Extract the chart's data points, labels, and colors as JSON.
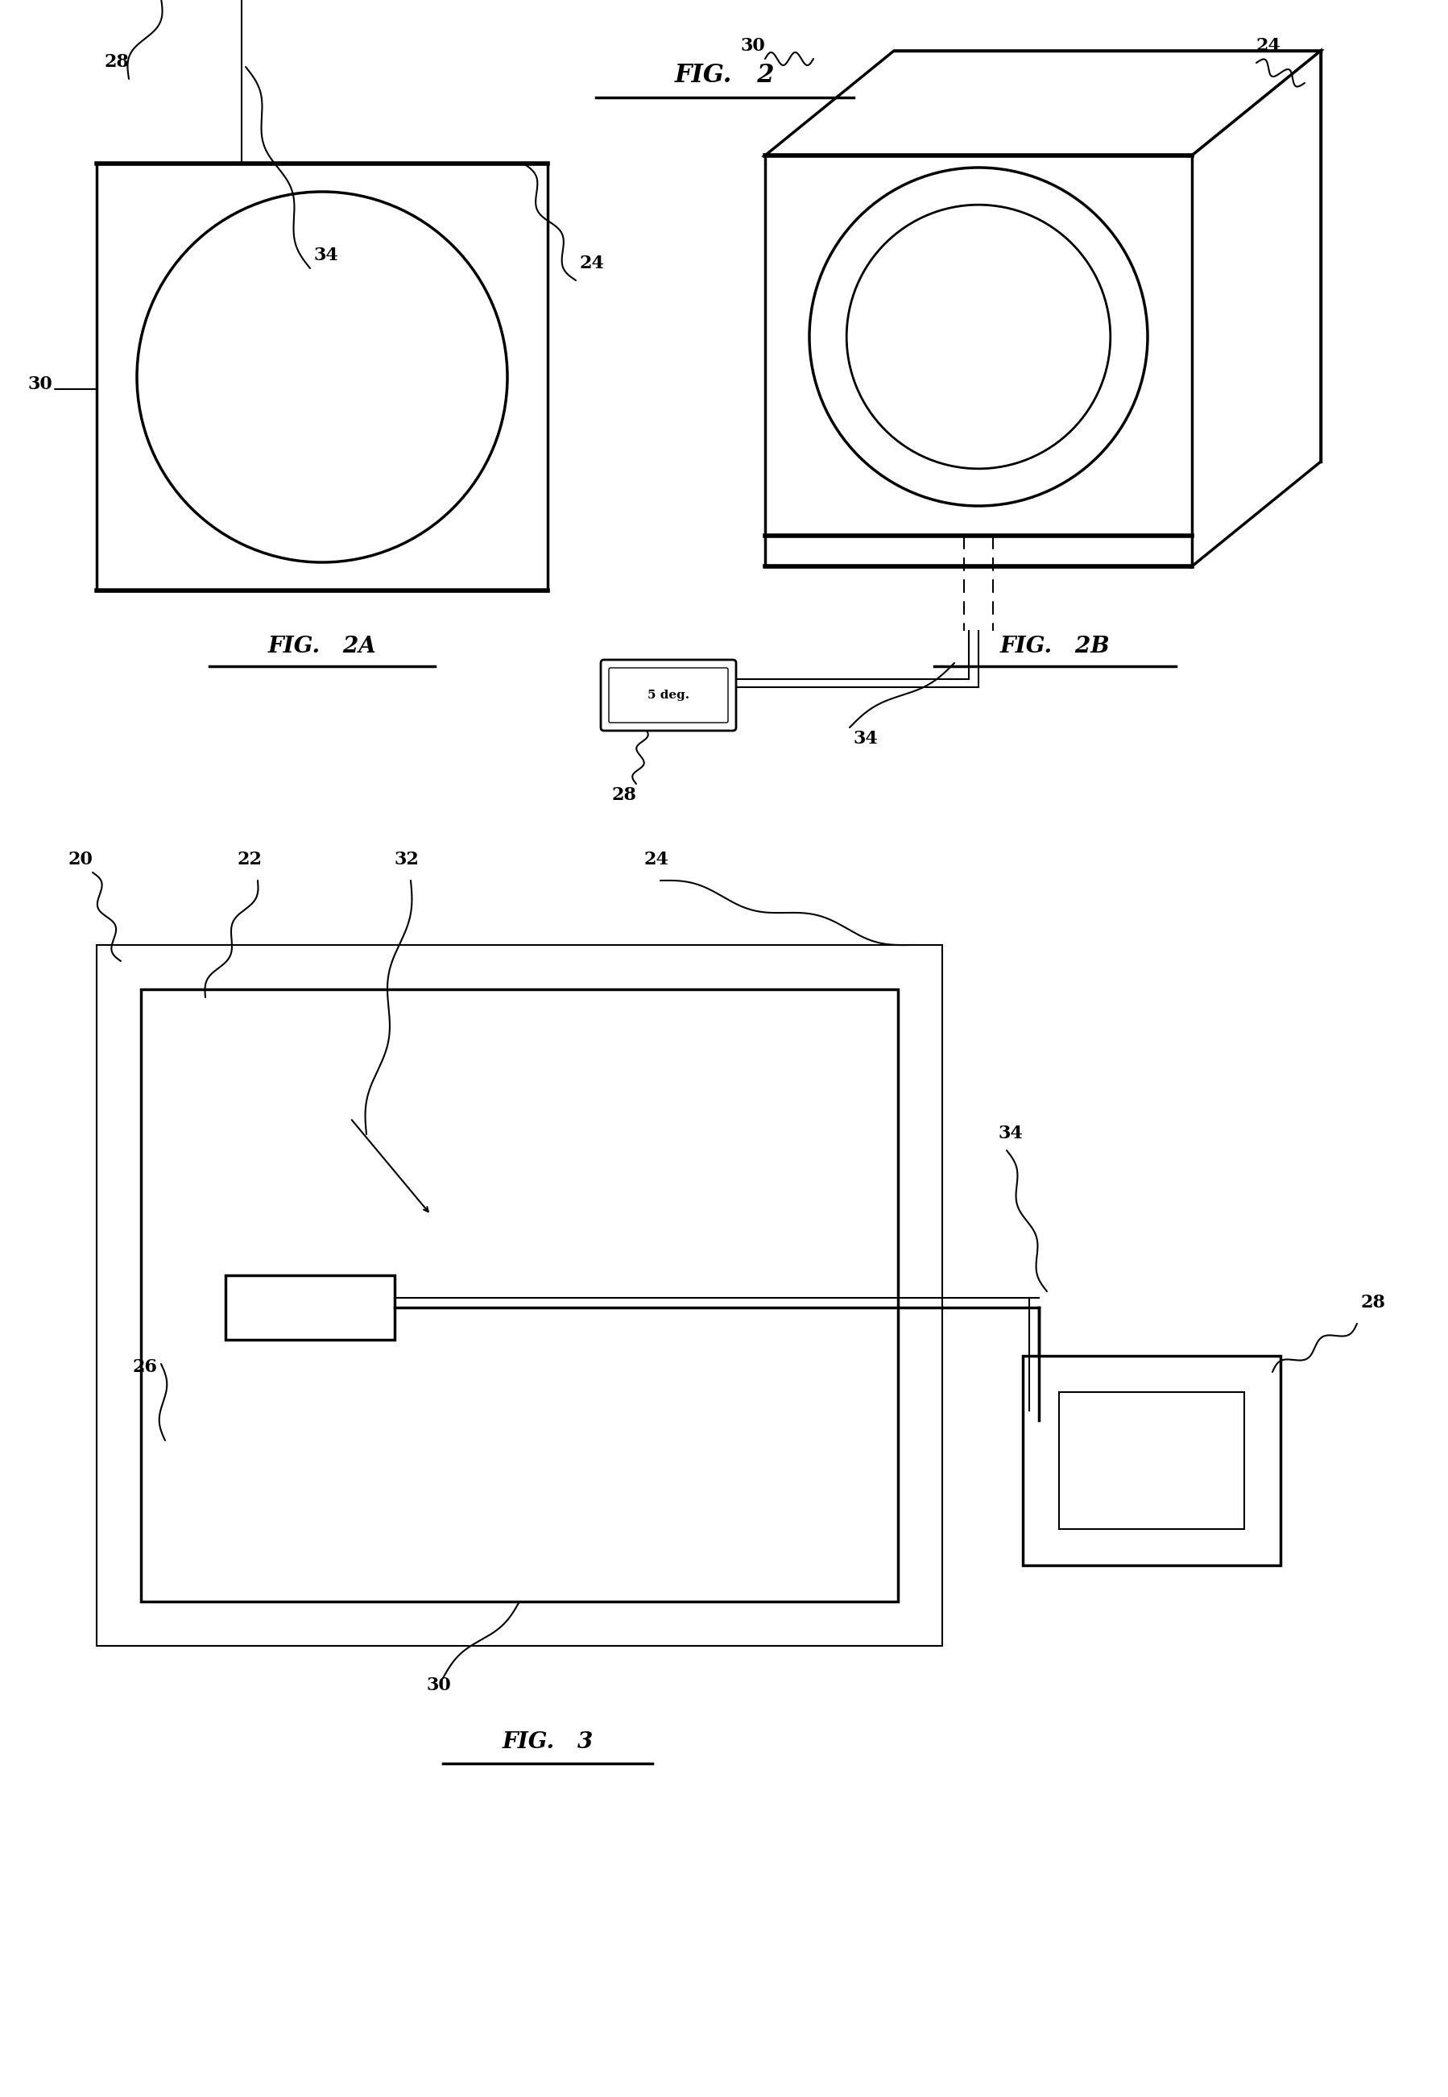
{
  "background_color": "#ffffff",
  "line_color": "#000000",
  "label_fontsize": 16,
  "title_fontsize": 20,
  "fig2_title": "FIG.   2",
  "fig2a_title": "FIG.   2A",
  "fig2b_title": "FIG.   2B",
  "fig3_title": "FIG.   3"
}
